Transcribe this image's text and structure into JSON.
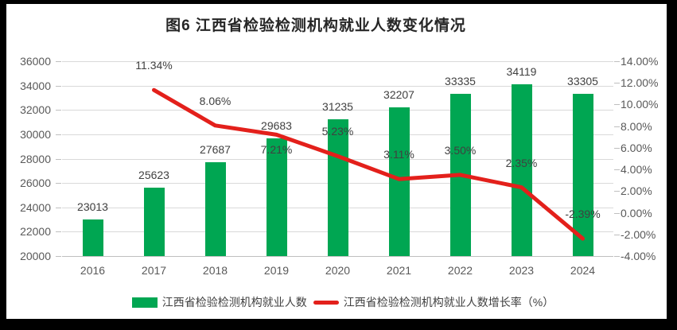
{
  "title": "图6 江西省检验检测机构就业人数变化情况",
  "colors": {
    "bar": "#00A652",
    "line": "#E3201B",
    "grid": "#D9D9D9",
    "axis_text": "#595959",
    "label_text": "#404040",
    "title_text": "#262626",
    "frame": "#000000",
    "surface": "#FFFFFF"
  },
  "chart_data": {
    "type": "bar",
    "subtype": "bar+line combo, dual axis",
    "title": "图6 江西省检验检测机构就业人数变化情况",
    "categories": [
      "2016",
      "2017",
      "2018",
      "2019",
      "2020",
      "2021",
      "2022",
      "2023",
      "2024"
    ],
    "series": [
      {
        "name": "江西省检验检测机构就业人数",
        "type": "bar",
        "axis": "left",
        "values": [
          23013,
          25623,
          27687,
          29683,
          31235,
          32207,
          33335,
          34119,
          33305
        ],
        "data_labels": [
          "23013",
          "25623",
          "27687",
          "29683",
          "31235",
          "32207",
          "33335",
          "34119",
          "33305"
        ]
      },
      {
        "name": "江西省检验检测机构就业人数增长率（%）",
        "type": "line",
        "axis": "right",
        "points": [
          {
            "category": "2017",
            "value": 11.34,
            "label": "11.34%",
            "label_pos": "above"
          },
          {
            "category": "2018",
            "value": 8.06,
            "label": "8.06%",
            "label_pos": "above"
          },
          {
            "category": "2019",
            "value": 7.21,
            "label": "7.21%",
            "label_pos": "below"
          },
          {
            "category": "2020",
            "value": 5.23,
            "label": "5.23%",
            "label_pos": "above"
          },
          {
            "category": "2021",
            "value": 3.11,
            "label": "3.11%",
            "label_pos": "above"
          },
          {
            "category": "2022",
            "value": 3.5,
            "label": "3.50%",
            "label_pos": "above"
          },
          {
            "category": "2023",
            "value": 2.35,
            "label": "2.35%",
            "label_pos": "above"
          },
          {
            "category": "2024",
            "value": -2.39,
            "label": "-2.39%",
            "label_pos": "above"
          }
        ]
      }
    ],
    "left_axis": {
      "min": 20000,
      "max": 36000,
      "step": 2000,
      "tick_labels": [
        "36000",
        "34000",
        "32000",
        "30000",
        "28000",
        "26000",
        "24000",
        "22000",
        "20000"
      ]
    },
    "right_axis": {
      "min": -4,
      "max": 14,
      "step": 2,
      "tick_labels": [
        "14.00%",
        "12.00%",
        "10.00%",
        "8.00%",
        "6.00%",
        "4.00%",
        "2.00%",
        "0.00%",
        "-2.00%",
        "-4.00%"
      ]
    },
    "grid": true,
    "legend_position": "bottom"
  },
  "legend": {
    "items": [
      {
        "label": "江西省检验检测机构就业人数",
        "swatch": "bar"
      },
      {
        "label": "江西省检验检测机构就业人数增长率（%）",
        "swatch": "line"
      }
    ]
  }
}
